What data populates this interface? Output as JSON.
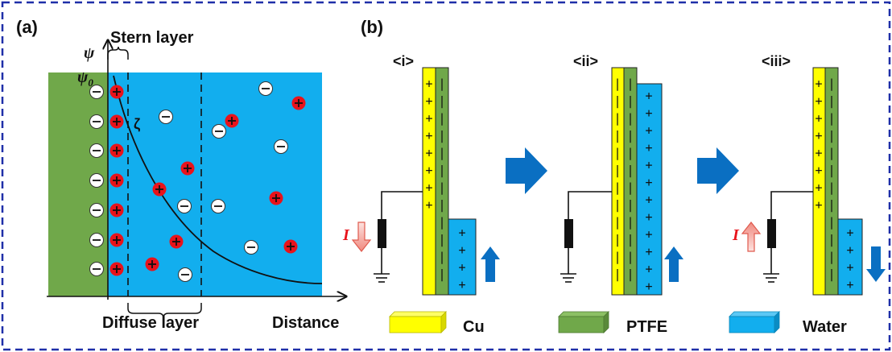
{
  "panel_a": {
    "label": "(a)",
    "psi_axis": "ψ",
    "psi0": "ψ",
    "psi0_sub": "0",
    "stern_label": "Stern layer",
    "zeta_label": "ζ",
    "diffuse_label": "Diffuse layer",
    "x_axis": "Distance"
  },
  "panel_b": {
    "label": "(b)",
    "stages": [
      "<i>",
      "<ii>",
      "<iii>"
    ],
    "current_symbol": "I",
    "current_symbol_2": "I"
  },
  "legend": {
    "items": [
      {
        "name": "Cu",
        "color": "#ffff00"
      },
      {
        "name": "PTFE",
        "color": "#70a84a"
      },
      {
        "name": "Water",
        "color": "#00b0f0"
      }
    ]
  },
  "colors": {
    "frame": "#1f2fa8",
    "electrode": "#70a84a",
    "water": "#12aeee",
    "cation": "#e8131b",
    "arrow": "#0a6fc2",
    "current_arrow": "#f4a6a0"
  },
  "signs": {
    "plus": "+",
    "minus": "−",
    "bar": "|"
  }
}
